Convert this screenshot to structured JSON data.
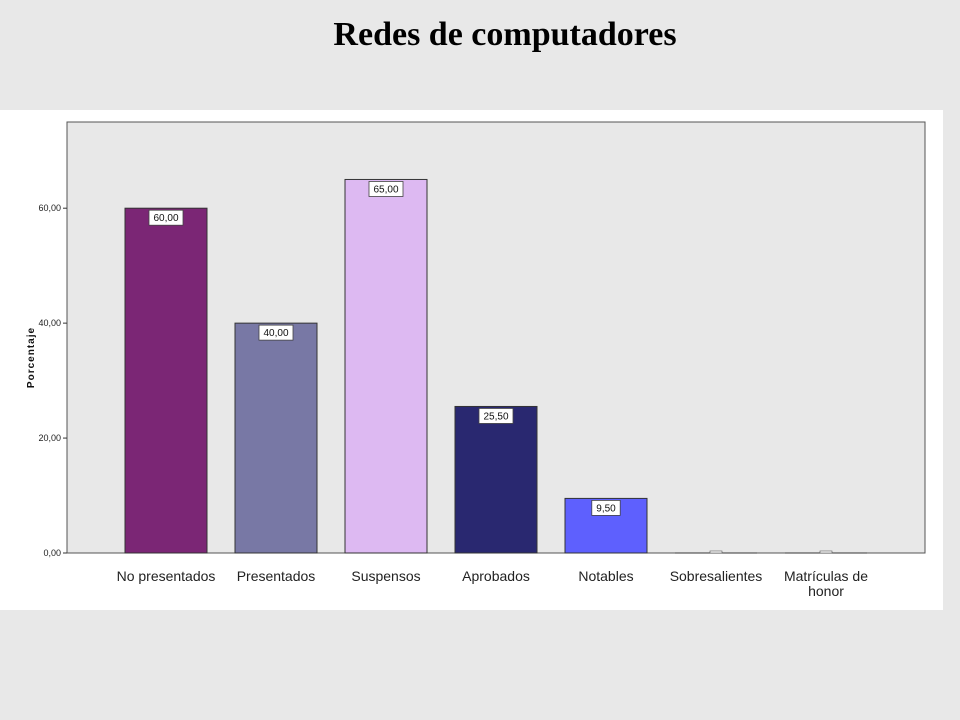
{
  "title": "Redes de computadores",
  "chart_data": {
    "type": "bar",
    "title": "",
    "xlabel": "",
    "ylabel": "Porcentaje",
    "ylim": [
      0,
      75
    ],
    "yticks": [
      0,
      20,
      40,
      60
    ],
    "ytick_labels": [
      "0,00",
      "20,00",
      "40,00",
      "60,00"
    ],
    "grid": false,
    "categories": [
      "No presentados",
      "Presentados",
      "Suspensos",
      "Aprobados",
      "Notables",
      "Sobresalientes",
      "Matrículas de honor"
    ],
    "category_lines": [
      [
        "No presentados"
      ],
      [
        "Presentados"
      ],
      [
        "Suspensos"
      ],
      [
        "Aprobados"
      ],
      [
        "Notables"
      ],
      [
        "Sobresalientes"
      ],
      [
        "Matrículas de",
        "honor"
      ]
    ],
    "values": [
      60,
      40,
      65,
      25.5,
      9.5,
      0,
      0
    ],
    "data_labels": [
      "60,00",
      "40,00",
      "65,00",
      "25,50",
      "9,50",
      "",
      ""
    ],
    "colors": [
      "#7b2675",
      "#7878a5",
      "#ddb9f2",
      "#292870",
      "#5e60fe",
      "#dddddd",
      "#dddddd"
    ],
    "plot_background": "#e8e8e8"
  }
}
